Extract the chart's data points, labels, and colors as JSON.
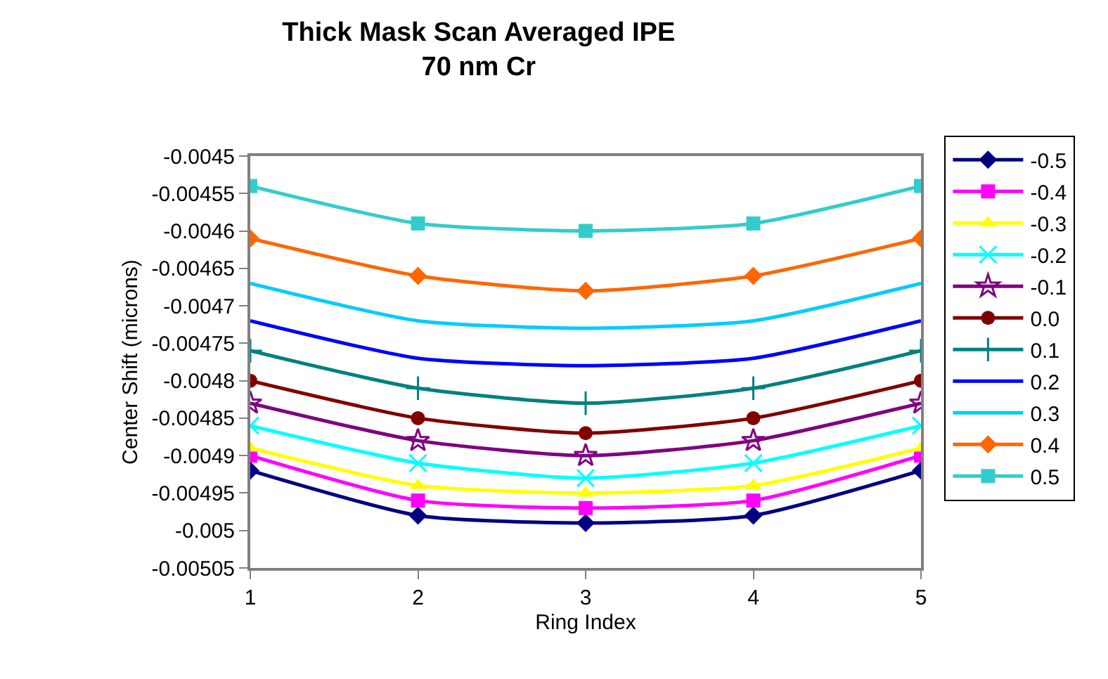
{
  "chart_data": {
    "type": "line",
    "title": "Thick Mask Scan Averaged IPE\n70 nm Cr",
    "xlabel": "Ring Index",
    "ylabel": "Center Shift (microns)",
    "x": [
      1,
      2,
      3,
      4,
      5
    ],
    "xlim": [
      1,
      5
    ],
    "xticks": [
      1,
      2,
      3,
      4,
      5
    ],
    "ylim": [
      -0.00505,
      -0.0045
    ],
    "yticks": [
      -0.0045,
      -0.00455,
      -0.0046,
      -0.00465,
      -0.0047,
      -0.00475,
      -0.0048,
      -0.00485,
      -0.0049,
      -0.00495,
      -0.005,
      -0.00505
    ],
    "legend": "right",
    "line_style": "solid",
    "series": [
      {
        "name": "-0.5",
        "color": "#000080",
        "marker": "diamond",
        "values": [
          -0.00492,
          -0.00498,
          -0.00499,
          -0.00498,
          -0.00492
        ]
      },
      {
        "name": "-0.4",
        "color": "#ff00ff",
        "marker": "square",
        "values": [
          -0.0049,
          -0.00496,
          -0.00497,
          -0.00496,
          -0.0049
        ]
      },
      {
        "name": "-0.3",
        "color": "#ffff00",
        "marker": "triangle",
        "values": [
          -0.00489,
          -0.00494,
          -0.00495,
          -0.00494,
          -0.00489
        ]
      },
      {
        "name": "-0.2",
        "color": "#00ffff",
        "marker": "cross",
        "values": [
          -0.00486,
          -0.00491,
          -0.00493,
          -0.00491,
          -0.00486
        ]
      },
      {
        "name": "-0.1",
        "color": "#800080",
        "marker": "star",
        "values": [
          -0.00483,
          -0.00488,
          -0.0049,
          -0.00488,
          -0.00483
        ]
      },
      {
        "name": "0.0",
        "color": "#800000",
        "marker": "circle",
        "values": [
          -0.0048,
          -0.00485,
          -0.00487,
          -0.00485,
          -0.0048
        ]
      },
      {
        "name": "0.1",
        "color": "#008080",
        "marker": "plus",
        "values": [
          -0.00476,
          -0.00481,
          -0.00483,
          -0.00481,
          -0.00476
        ]
      },
      {
        "name": "0.2",
        "color": "#0000ff",
        "marker": "none",
        "values": [
          -0.00472,
          -0.00477,
          -0.00478,
          -0.00477,
          -0.00472
        ]
      },
      {
        "name": "0.3",
        "color": "#00ccff",
        "marker": "none",
        "values": [
          -0.00467,
          -0.00472,
          -0.00473,
          -0.00472,
          -0.00467
        ]
      },
      {
        "name": "0.4",
        "color": "#ff6600",
        "marker": "diamond",
        "values": [
          -0.00461,
          -0.00466,
          -0.00468,
          -0.00466,
          -0.00461
        ]
      },
      {
        "name": "0.5",
        "color": "#33cccc",
        "marker": "square",
        "values": [
          -0.00454,
          -0.00459,
          -0.0046,
          -0.00459,
          -0.00454
        ]
      }
    ]
  }
}
